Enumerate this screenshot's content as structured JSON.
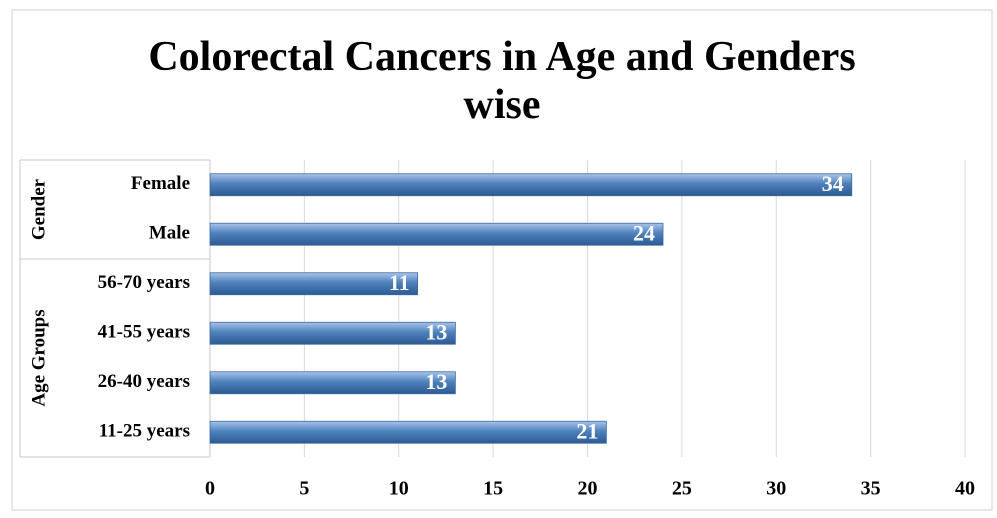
{
  "chart_data": {
    "type": "bar",
    "orientation": "horizontal",
    "title": "Colorectal Cancers in Age and Genders wise",
    "groups": [
      {
        "name": "Gender",
        "categories": [
          "Female",
          "Male"
        ],
        "values": [
          34,
          24
        ]
      },
      {
        "name": "Age Groups",
        "categories": [
          "56-70 years",
          "41-55 years",
          "26-40 years",
          "11-25 years"
        ],
        "values": [
          11,
          13,
          13,
          21
        ]
      }
    ],
    "color": "#4f81bd",
    "xlim": [
      0,
      40
    ],
    "xticks": [
      0,
      5,
      10,
      15,
      20,
      25,
      30,
      35,
      40
    ],
    "grid": true
  }
}
